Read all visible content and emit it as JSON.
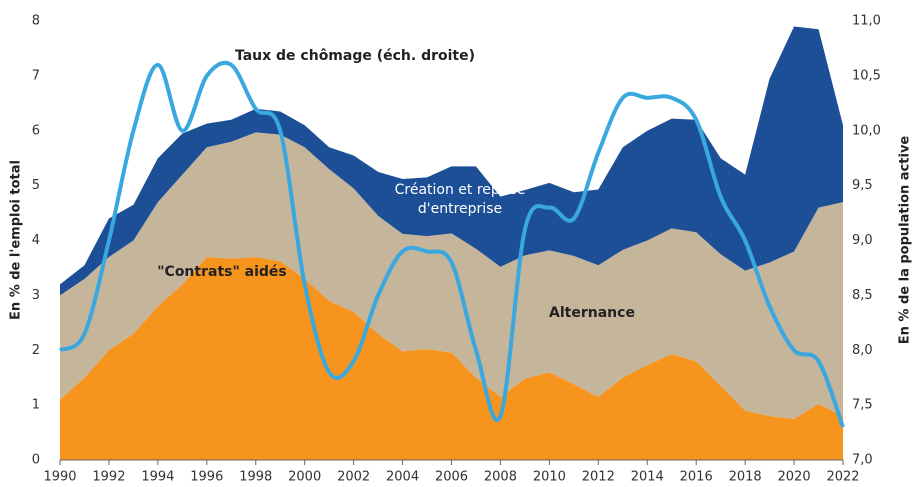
{
  "chart_data": {
    "type": "stacked_area_line",
    "x": [
      1990,
      1991,
      1992,
      1993,
      1994,
      1995,
      1996,
      1997,
      1998,
      1999,
      2000,
      2001,
      2002,
      2003,
      2004,
      2005,
      2006,
      2007,
      2008,
      2009,
      2010,
      2011,
      2012,
      2013,
      2014,
      2015,
      2016,
      2017,
      2018,
      2019,
      2020,
      2021,
      2022
    ],
    "series": [
      {
        "name": "\"Contrats\" aidés",
        "color": "#f7941d",
        "values": [
          1.1,
          1.5,
          2.0,
          2.3,
          2.8,
          3.2,
          3.7,
          3.67,
          3.7,
          3.62,
          3.3,
          2.9,
          2.7,
          2.3,
          1.98,
          2.02,
          1.96,
          1.5,
          1.15,
          1.48,
          1.6,
          1.38,
          1.15,
          1.5,
          1.73,
          1.93,
          1.8,
          1.35,
          0.9,
          0.8,
          0.75,
          1.02,
          0.8
        ]
      },
      {
        "name": "Alternance",
        "color": "#c4b59b",
        "values": [
          1.9,
          1.8,
          1.7,
          1.7,
          1.9,
          2.0,
          2.0,
          2.13,
          2.27,
          2.31,
          2.4,
          2.4,
          2.25,
          2.15,
          2.14,
          2.06,
          2.17,
          2.35,
          2.37,
          2.25,
          2.22,
          2.34,
          2.4,
          2.33,
          2.27,
          2.29,
          2.35,
          2.4,
          2.55,
          2.8,
          3.05,
          3.58,
          3.9
        ]
      },
      {
        "name": "Création et reprise d'entreprise",
        "color": "#1c4f96",
        "values": [
          0.2,
          0.25,
          0.7,
          0.65,
          0.8,
          0.75,
          0.43,
          0.4,
          0.43,
          0.42,
          0.4,
          0.4,
          0.6,
          0.8,
          1.0,
          1.07,
          1.22,
          1.5,
          1.28,
          1.19,
          1.23,
          1.16,
          1.38,
          1.87,
          2.0,
          2.0,
          2.05,
          1.75,
          1.75,
          3.35,
          4.1,
          3.25,
          1.4
        ]
      },
      {
        "name": "Taux de chômage (éch. droite)",
        "color": "#3aa8e0",
        "axis": "y2",
        "values": [
          8.0,
          8.15,
          9.0,
          10.0,
          10.6,
          10.0,
          10.5,
          10.6,
          10.2,
          10.0,
          8.6,
          7.8,
          7.9,
          8.5,
          8.9,
          8.9,
          8.8,
          8.0,
          7.4,
          9.1,
          9.3,
          9.2,
          9.8,
          10.3,
          10.3,
          10.3,
          10.1,
          9.4,
          9.0,
          8.4,
          8.0,
          7.9,
          7.3
        ]
      }
    ],
    "ylabel": "En % de l'emploi total",
    "y2label": "En % de la population active",
    "xlim": [
      1990,
      2022
    ],
    "xticks": [
      1990,
      1992,
      1994,
      1996,
      1998,
      2000,
      2002,
      2004,
      2006,
      2008,
      2010,
      2012,
      2014,
      2016,
      2018,
      2020,
      2022
    ],
    "ylim": [
      0,
      8
    ],
    "yticks": [
      0,
      1,
      2,
      3,
      4,
      5,
      6,
      7,
      8
    ],
    "y2lim": [
      7,
      11
    ],
    "y2ticks": [
      {
        "value": 7,
        "label": "7,0"
      },
      {
        "value": 7.5,
        "label": "7,5"
      },
      {
        "value": 8,
        "label": "8,0"
      },
      {
        "value": 8.5,
        "label": "8,5"
      },
      {
        "value": 9,
        "label": "9,0"
      },
      {
        "value": 9.5,
        "label": "9,5"
      },
      {
        "value": 10,
        "label": "10,0"
      },
      {
        "value": 10.5,
        "label": "10,5"
      },
      {
        "value": 11,
        "label": "11,0"
      }
    ]
  }
}
